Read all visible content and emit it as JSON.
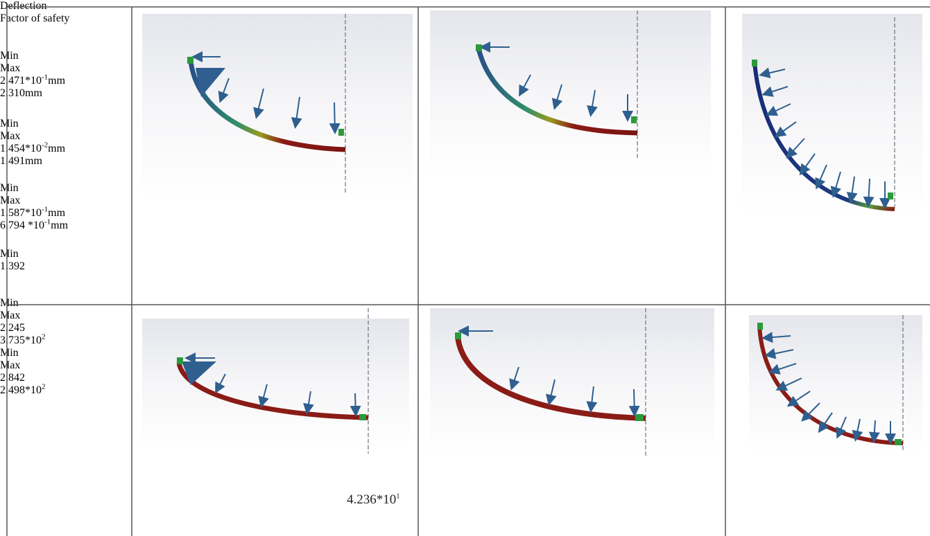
{
  "rows": [
    {
      "label": "Deflection",
      "cells": [
        {
          "header": [
            "Min",
            "Max"
          ],
          "min": {
            "text": "2.471*10",
            "sup": "-1",
            "unit": "mm"
          },
          "max": {
            "text": "2.310mm"
          }
        },
        {
          "header": [
            "Min",
            "Max"
          ],
          "min": {
            "text": "1.454*10",
            "sup": "-2",
            "unit": "mm"
          },
          "max": {
            "text": "1.491mm"
          }
        },
        {
          "header": [
            "Min",
            "Max"
          ],
          "min": {
            "text": "1.587*10",
            "sup": "-1",
            "unit": "mm"
          },
          "max": {
            "text": "6.794 *10",
            "sup": "-1",
            "unit": "mm"
          }
        }
      ]
    },
    {
      "label": "Factor of safety",
      "cells": [
        {
          "header": [
            "Min"
          ],
          "min": {
            "text": "1.392"
          },
          "max": {
            "text": "4.236*10",
            "sup": "1"
          }
        },
        {
          "header": [
            "Min",
            "Max"
          ],
          "min": {
            "text": "2.245"
          },
          "max": {
            "text": "3.735*10",
            "sup": "2"
          }
        },
        {
          "header": [
            "Min",
            "Max"
          ],
          "min": {
            "text": "2.842"
          },
          "max": {
            "text": "2.498*10",
            "sup": "2"
          }
        }
      ]
    }
  ]
}
